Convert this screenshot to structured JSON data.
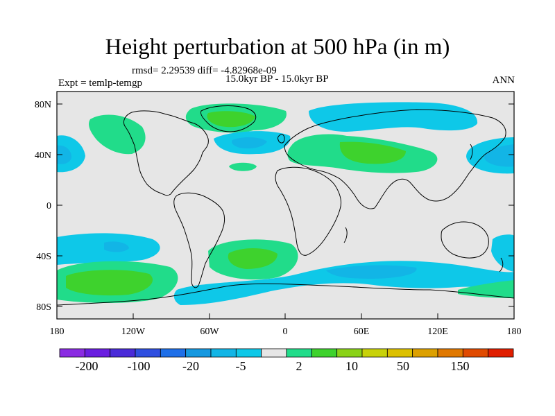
{
  "title": "Height perturbation at 500 hPa (in m)",
  "stats_line": "rmsd= 2.29539 diff= -4.82968e-09",
  "period_line": "15.0kyr BP - 15.0kyr BP",
  "expt_line": "Expt = temlp-temgp",
  "season": "ANN",
  "lat_labels": [
    "80N",
    "40N",
    "0",
    "40S",
    "80S"
  ],
  "lon_labels": [
    "180",
    "120W",
    "60W",
    "0",
    "60E",
    "120E",
    "180"
  ],
  "colorbar": {
    "colors": [
      "#8a2be2",
      "#6a1ee0",
      "#4a2bd8",
      "#2f4fe0",
      "#1e6fe8",
      "#1598e0",
      "#12b5e6",
      "#0ec8e8",
      "#e6e6e6",
      "#21dc8a",
      "#3ed22d",
      "#8ad217",
      "#c8d20a",
      "#dcc000",
      "#dca000",
      "#e07800",
      "#e04a00",
      "#e01e00"
    ],
    "labels": [
      "-200",
      "-100",
      "-20",
      "-5",
      "2",
      "10",
      "50",
      "150"
    ]
  },
  "chart_data": {
    "type": "heatmap",
    "title": "Height perturbation at 500 hPa (in m)",
    "variable": "500 hPa height perturbation",
    "units": "m",
    "x_range": [
      -180,
      180
    ],
    "y_range": [
      -90,
      90
    ],
    "anomalies": [
      {
        "region": "North Atlantic / Greenland",
        "lon": -40,
        "lat": 65,
        "sign": "positive",
        "level": "2-10"
      },
      {
        "region": "Northwest Atlantic",
        "lon": -30,
        "lat": 45,
        "sign": "negative",
        "level": "-5 to -2"
      },
      {
        "region": "Europe / Central Asia",
        "lon": 40,
        "lat": 45,
        "sign": "positive",
        "level": "2-10"
      },
      {
        "region": "Northern Siberia",
        "lon": 80,
        "lat": 65,
        "sign": "negative",
        "level": "-5 to -2"
      },
      {
        "region": "North Pacific (west)",
        "lon": -170,
        "lat": 40,
        "sign": "negative",
        "level": "-5 to -2"
      },
      {
        "region": "North Pacific (east)",
        "lon": 170,
        "lat": 40,
        "sign": "negative",
        "level": "-5 to -2"
      },
      {
        "region": "Southern Pacific",
        "lon": -140,
        "lat": -55,
        "sign": "positive",
        "level": "2-10"
      },
      {
        "region": "South Atlantic",
        "lon": -30,
        "lat": -40,
        "sign": "positive",
        "level": "2-10"
      },
      {
        "region": "Southern Ocean belt",
        "lon": 60,
        "lat": -60,
        "sign": "negative",
        "level": "-5 to -2"
      }
    ]
  }
}
